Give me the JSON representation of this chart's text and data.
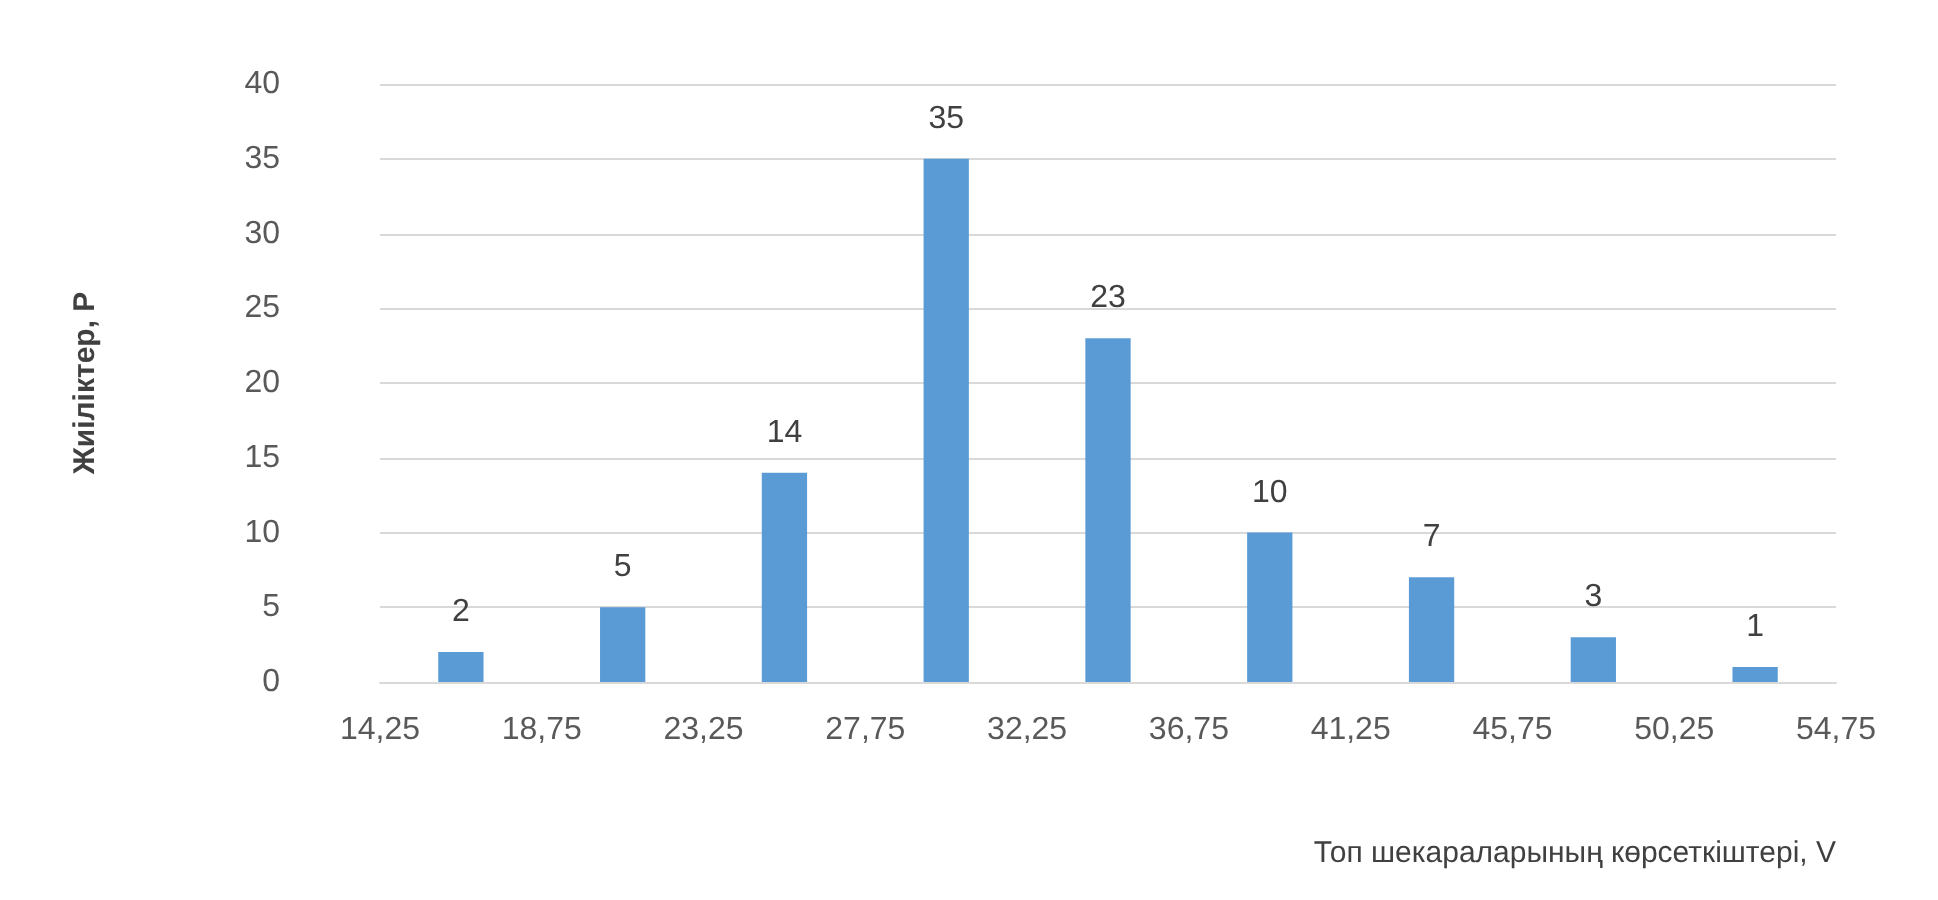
{
  "chart_data": {
    "type": "histogram",
    "xlabel": "Топ шекараларының көрсеткіштері, V",
    "ylabel": "Жиіліктер, P",
    "bins": [
      14.25,
      18.75,
      23.25,
      27.75,
      32.25,
      36.75,
      41.25,
      45.75,
      50.25,
      54.75
    ],
    "values": [
      2,
      5,
      14,
      35,
      23,
      10,
      7,
      3,
      1
    ],
    "color": "#5b9bd5",
    "data_labels": true,
    "xlim": [
      14.25,
      54.75
    ],
    "xticks": [
      {
        "value": 14.25,
        "label": "14,25"
      },
      {
        "value": 18.75,
        "label": "18,75"
      },
      {
        "value": 23.25,
        "label": "23,25"
      },
      {
        "value": 27.75,
        "label": "27,75"
      },
      {
        "value": 32.25,
        "label": "32,25"
      },
      {
        "value": 36.75,
        "label": "36,75"
      },
      {
        "value": 41.25,
        "label": "41,25"
      },
      {
        "value": 45.75,
        "label": "45,75"
      },
      {
        "value": 50.25,
        "label": "50,25"
      },
      {
        "value": 54.75,
        "label": "54,75"
      }
    ],
    "ylim": [
      0,
      40
    ],
    "yticks": [
      0,
      5,
      10,
      15,
      20,
      25,
      30,
      35,
      40
    ],
    "grid": "y"
  }
}
